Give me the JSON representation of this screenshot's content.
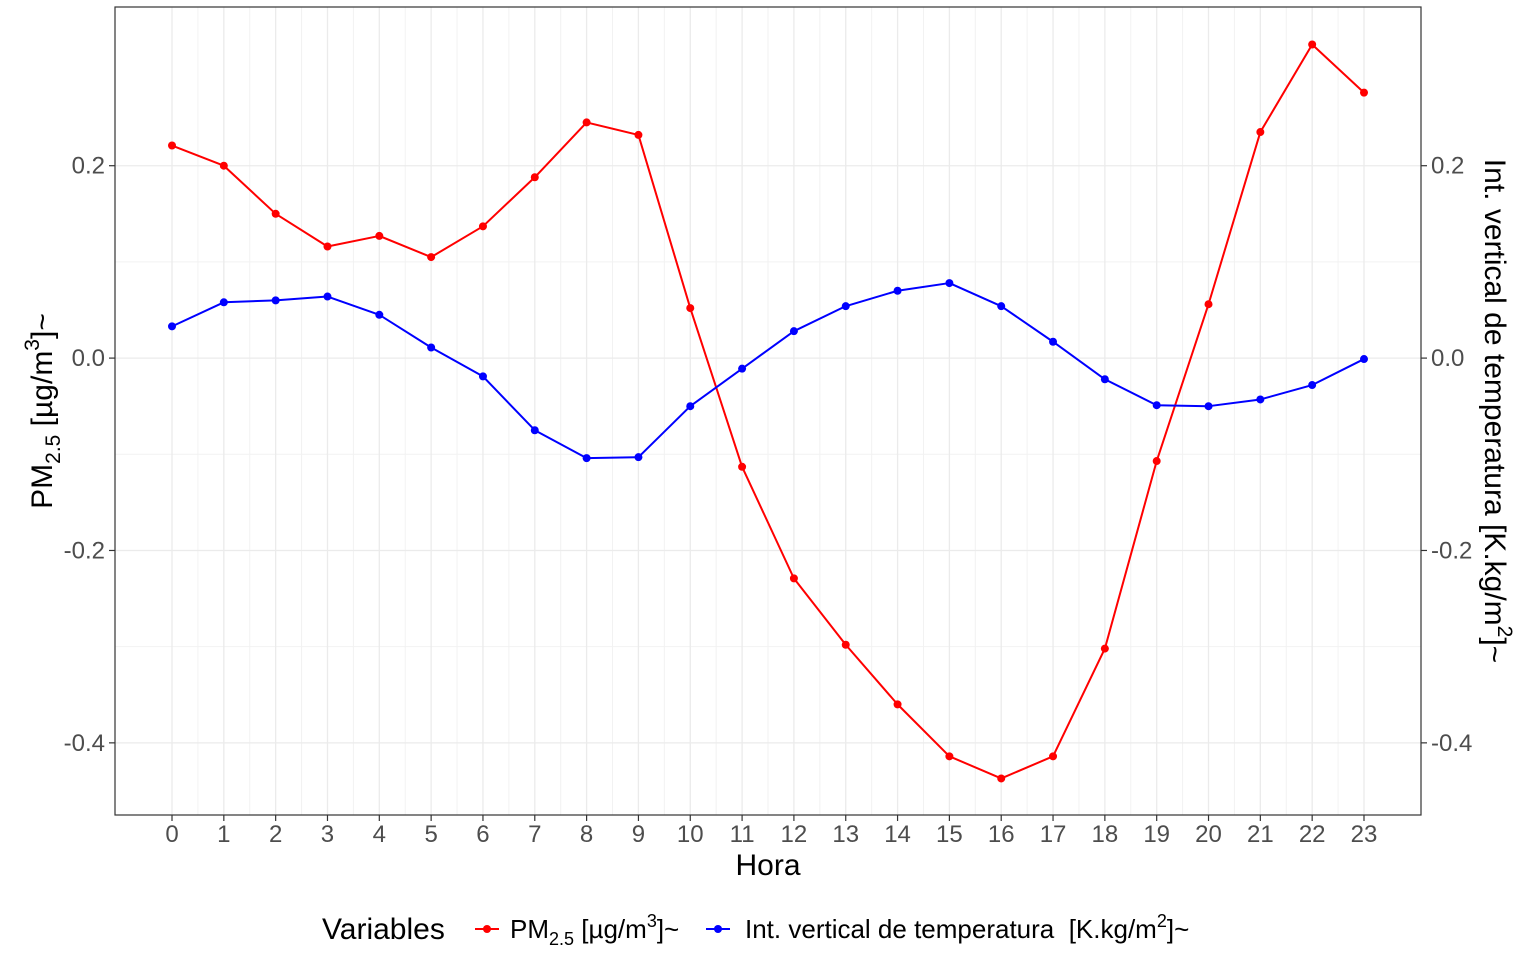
{
  "chart_data": {
    "type": "line",
    "xlabel": "Hora",
    "x": [
      0,
      1,
      2,
      3,
      4,
      5,
      6,
      7,
      8,
      9,
      10,
      11,
      12,
      13,
      14,
      15,
      16,
      17,
      18,
      19,
      20,
      21,
      22,
      23
    ],
    "y_left_label": {
      "base": "PM",
      "sub": "2.5",
      "unit_open": " [µg/m",
      "sup": "3",
      "unit_close": "]~"
    },
    "y_right_label": {
      "text": "Int. vertical de temperatura [K.kg/m",
      "sup": "2",
      "close": "]~"
    },
    "ylim": [
      -0.475,
      0.365
    ],
    "y_ticks": [
      -0.4,
      -0.2,
      0.0,
      0.2
    ],
    "y_tick_labels": [
      "-0.4",
      "-0.2",
      "0.0",
      "0.2"
    ],
    "grid": true,
    "legend_position": "bottom",
    "legend_title": "Variables",
    "series": [
      {
        "name": "PM2.5 [µg/m3]~",
        "color": "#ff0000",
        "values": [
          0.221,
          0.2,
          0.15,
          0.116,
          0.127,
          0.105,
          0.137,
          0.188,
          0.245,
          0.232,
          0.052,
          -0.113,
          -0.229,
          -0.298,
          -0.36,
          -0.414,
          -0.437,
          -0.414,
          -0.302,
          -0.107,
          0.056,
          0.235,
          0.326,
          0.276
        ]
      },
      {
        "name": "Int. vertical de temperatura  [K.kg/m2]~",
        "color": "#0000ff",
        "values": [
          0.033,
          0.058,
          0.06,
          0.064,
          0.045,
          0.011,
          -0.019,
          -0.075,
          -0.104,
          -0.103,
          -0.05,
          -0.011,
          0.028,
          0.054,
          0.07,
          0.078,
          0.054,
          0.017,
          -0.022,
          -0.049,
          -0.05,
          -0.043,
          -0.028,
          -0.001
        ]
      }
    ],
    "legend_items": [
      {
        "base": "PM",
        "sub": "2.5",
        "mid": " [µg/m",
        "sup": "3",
        "end": "]~"
      },
      {
        "base": "Int. vertical de temperatura  [K.kg/m",
        "sup": "2",
        "end": "]~"
      }
    ]
  }
}
